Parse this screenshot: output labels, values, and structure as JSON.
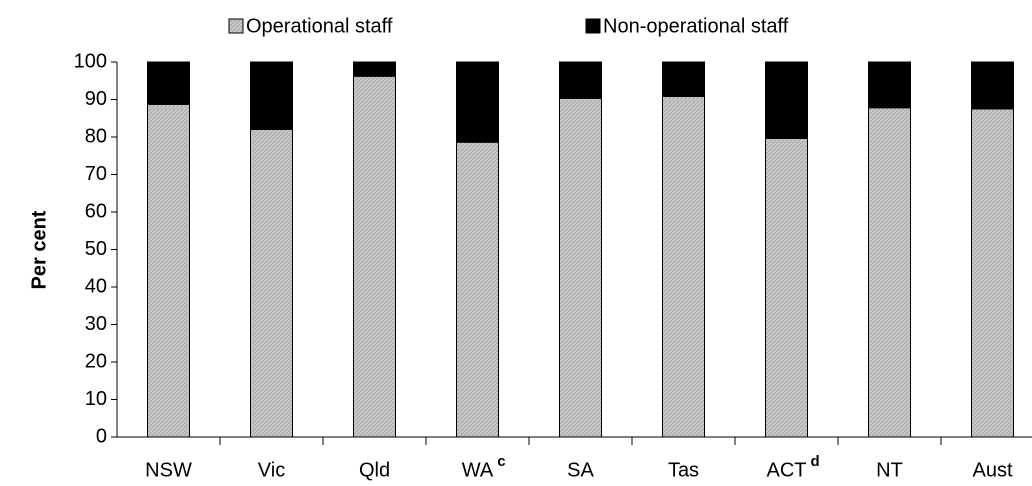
{
  "chart_data": {
    "type": "stacked-bar",
    "categories": [
      "NSW",
      "Vic",
      "Qld",
      "WA",
      "SA",
      "Tas",
      "ACT",
      "NT",
      "Aust"
    ],
    "category_notes": [
      null,
      null,
      null,
      "c",
      null,
      null,
      "d",
      null,
      null
    ],
    "series": [
      {
        "name": "Operational staff",
        "color": "#c8c8c8",
        "values": [
          88.7,
          82,
          96.2,
          78.6,
          90.3,
          90.8,
          79.6,
          87.8,
          87.5
        ]
      },
      {
        "name": "Non-operational staff",
        "color": "#000000",
        "values": [
          11.3,
          18,
          3.8,
          21.4,
          9.7,
          9.2,
          20.4,
          12.2,
          12.5
        ]
      }
    ],
    "y_label": "Per cent",
    "ylim": [
      0,
      100
    ],
    "yticks": [
      0,
      10,
      20,
      30,
      40,
      50,
      60,
      70,
      80,
      90,
      100
    ],
    "grid": false
  }
}
